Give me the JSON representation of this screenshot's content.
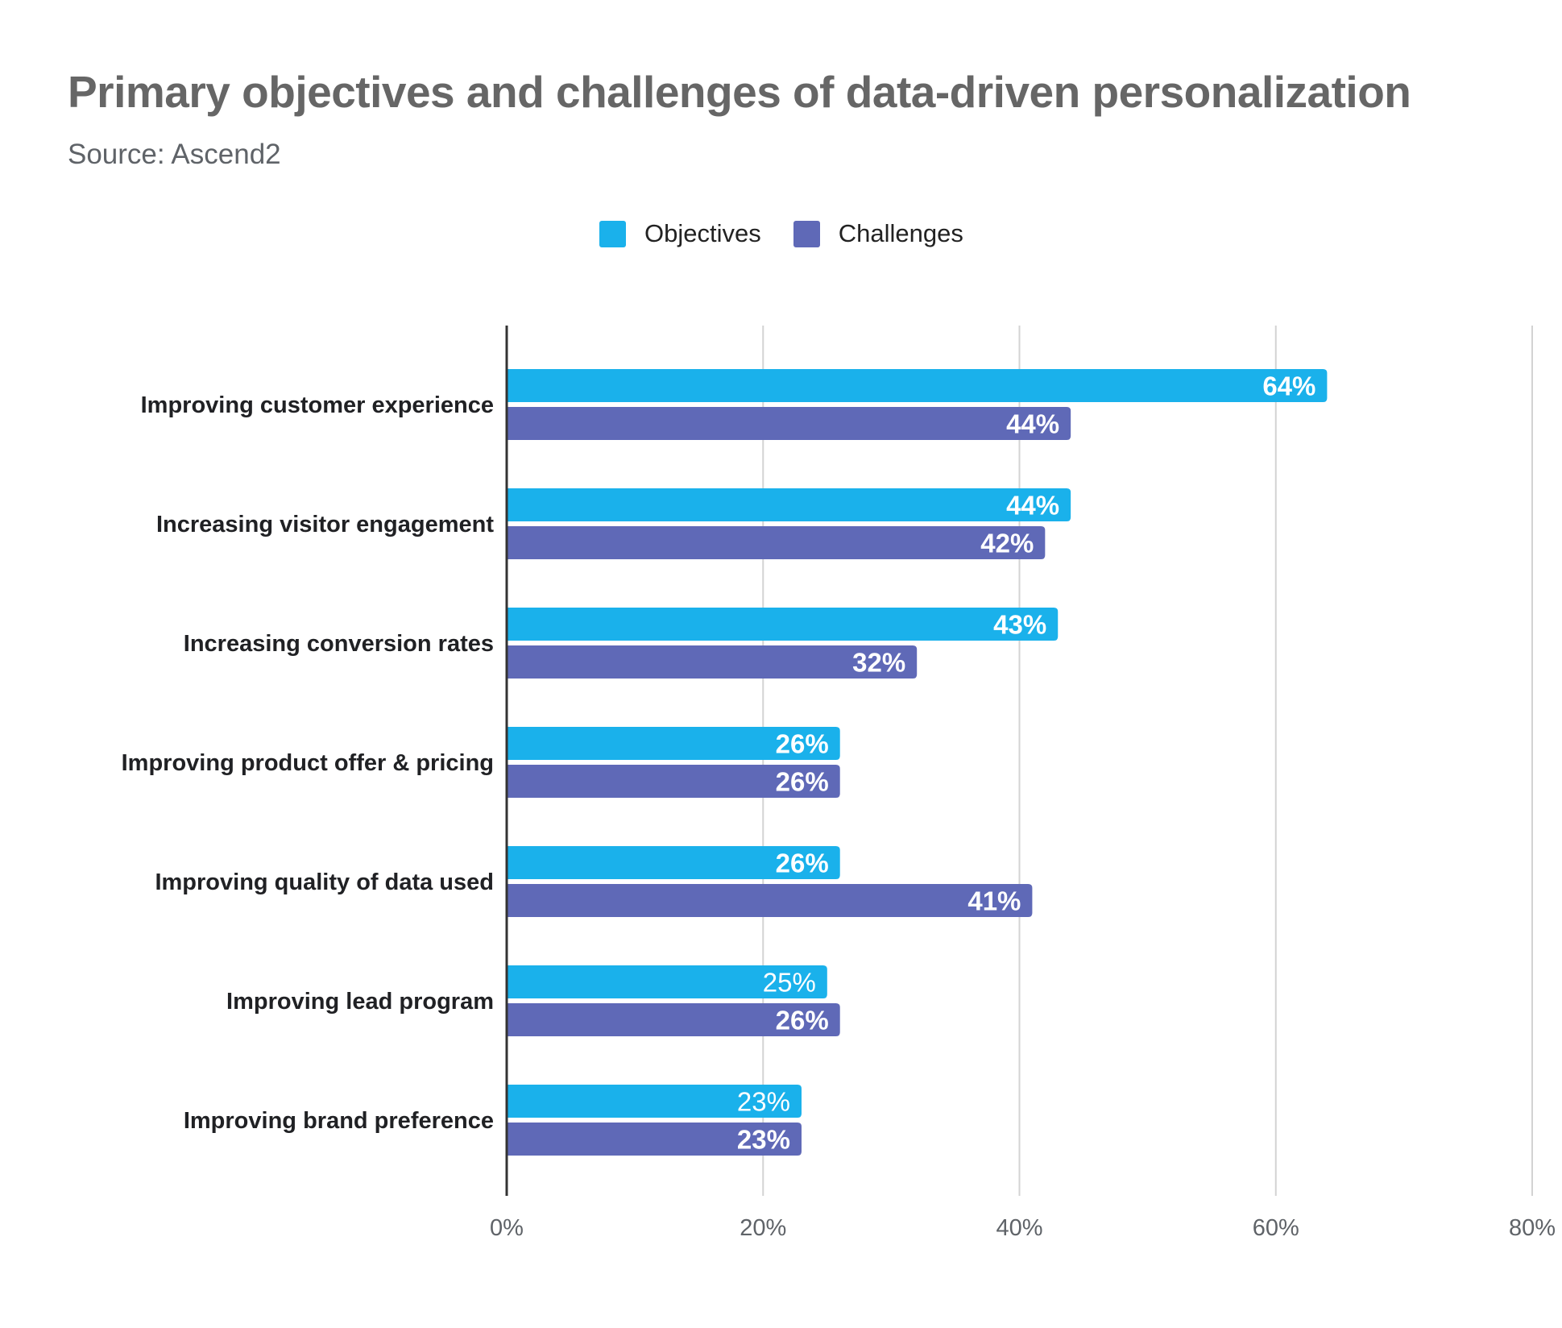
{
  "chart_data": {
    "type": "bar",
    "orientation": "horizontal",
    "title": "Primary objectives and challenges of data-driven personalization",
    "subtitle": "Source: Ascend2",
    "categories": [
      "Improving customer experience",
      "Increasing visitor engagement",
      "Increasing conversion rates",
      "Improving product offer & pricing",
      "Improving quality of data used",
      "Improving lead program",
      "Improving brand preference"
    ],
    "series": [
      {
        "name": "Objectives",
        "color": "#1ab1eb",
        "values": [
          64,
          44,
          43,
          26,
          26,
          25,
          23
        ],
        "labels": [
          "64%",
          "44%",
          "43%",
          "26%",
          "26%",
          "25%",
          "23%"
        ],
        "label_bold": [
          true,
          true,
          true,
          true,
          true,
          false,
          false
        ]
      },
      {
        "name": "Challenges",
        "color": "#5f69b7",
        "values": [
          44,
          42,
          32,
          26,
          41,
          26,
          23
        ],
        "labels": [
          "44%",
          "42%",
          "32%",
          "26%",
          "41%",
          "26%",
          "23%"
        ],
        "label_bold": [
          true,
          true,
          true,
          true,
          true,
          true,
          true
        ]
      }
    ],
    "xlabel": "",
    "ylabel": "",
    "xlim": [
      0,
      80
    ],
    "xticks": [
      0,
      20,
      40,
      60,
      80
    ],
    "xtick_labels": [
      "0%",
      "20%",
      "40%",
      "60%",
      "80%"
    ],
    "grid": true,
    "legend_position": "top-center"
  }
}
